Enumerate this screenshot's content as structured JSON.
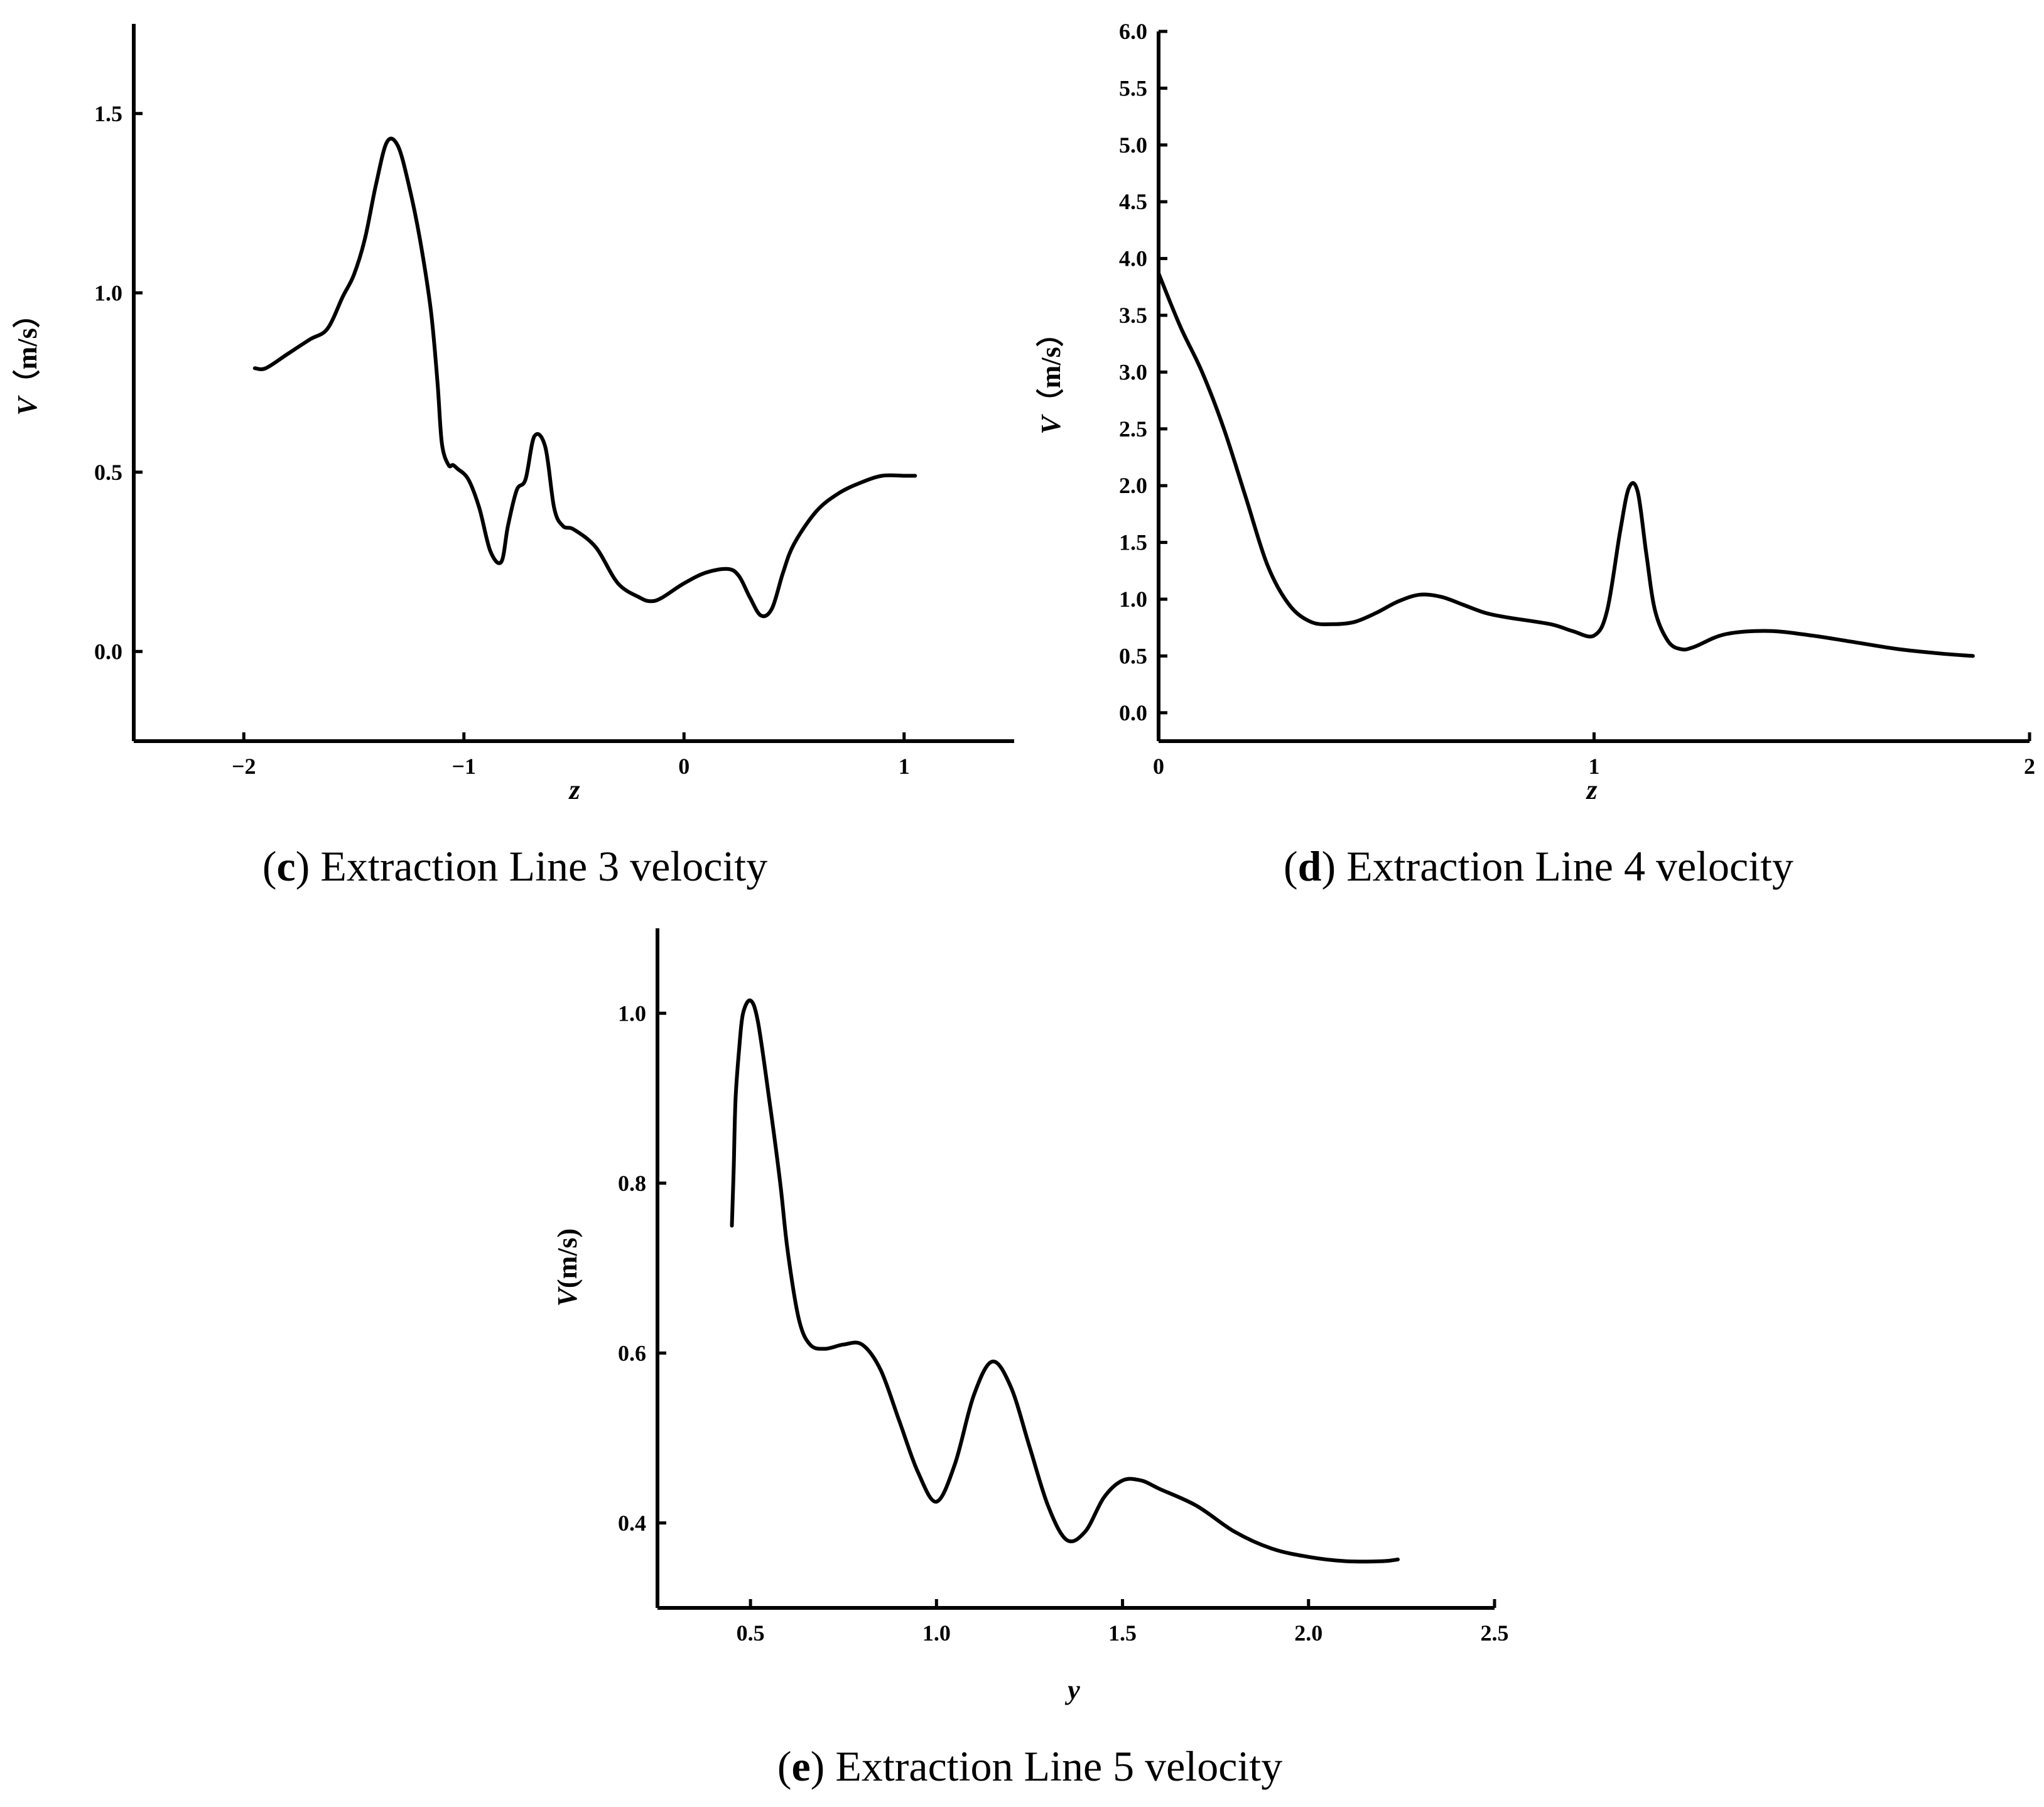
{
  "chart_data": [
    {
      "id": "c",
      "type": "line",
      "caption_letter": "c",
      "caption_text": " Extraction Line 3 velocity",
      "ylabel_var": "V",
      "ylabel_unit": "（m/s）",
      "xlabel": "z",
      "xlim": [
        -2.5,
        1.5
      ],
      "ylim": [
        -0.25,
        1.75
      ],
      "xticks": [
        {
          "v": -2,
          "label": "−2"
        },
        {
          "v": -1,
          "label": "−1"
        },
        {
          "v": 0,
          "label": "0"
        },
        {
          "v": 1,
          "label": "1"
        }
      ],
      "yticks": [
        {
          "v": 0.0,
          "label": "0.0"
        },
        {
          "v": 0.5,
          "label": "0.5"
        },
        {
          "v": 1.0,
          "label": "1.0"
        },
        {
          "v": 1.5,
          "label": "1.5"
        }
      ],
      "series": [
        {
          "name": "Extraction Line 3",
          "x": [
            -1.95,
            -1.9,
            -1.8,
            -1.7,
            -1.62,
            -1.55,
            -1.5,
            -1.45,
            -1.4,
            -1.35,
            -1.3,
            -1.25,
            -1.2,
            -1.15,
            -1.12,
            -1.1,
            -1.07,
            -1.05,
            -1.03,
            -0.98,
            -0.93,
            -0.88,
            -0.83,
            -0.8,
            -0.76,
            -0.72,
            -0.68,
            -0.63,
            -0.59,
            -0.55,
            -0.5,
            -0.4,
            -0.3,
            -0.2,
            -0.15,
            -0.1,
            0.0,
            0.1,
            0.2,
            0.25,
            0.3,
            0.35,
            0.4,
            0.45,
            0.5,
            0.6,
            0.7,
            0.8,
            0.9,
            1.0,
            1.05
          ],
          "y": [
            0.79,
            0.79,
            0.83,
            0.87,
            0.9,
            0.99,
            1.05,
            1.15,
            1.3,
            1.42,
            1.41,
            1.3,
            1.15,
            0.95,
            0.75,
            0.58,
            0.52,
            0.52,
            0.51,
            0.48,
            0.4,
            0.28,
            0.25,
            0.35,
            0.45,
            0.48,
            0.6,
            0.57,
            0.4,
            0.35,
            0.34,
            0.29,
            0.19,
            0.15,
            0.14,
            0.15,
            0.19,
            0.22,
            0.23,
            0.21,
            0.15,
            0.1,
            0.12,
            0.22,
            0.3,
            0.39,
            0.44,
            0.47,
            0.49,
            0.49,
            0.49
          ]
        }
      ]
    },
    {
      "id": "d",
      "type": "line",
      "caption_letter": "d",
      "caption_text": " Extraction Line 4 velocity",
      "ylabel_var": "V",
      "ylabel_unit": "（m/s）",
      "xlabel": "z",
      "xlim": [
        0,
        2
      ],
      "ylim": [
        -0.25,
        6.0
      ],
      "xticks": [
        {
          "v": 0,
          "label": "0"
        },
        {
          "v": 1,
          "label": "1"
        },
        {
          "v": 2,
          "label": "2"
        }
      ],
      "yticks": [
        {
          "v": 0.0,
          "label": "0.0"
        },
        {
          "v": 0.5,
          "label": "0.5"
        },
        {
          "v": 1.0,
          "label": "1.0"
        },
        {
          "v": 1.5,
          "label": "1.5"
        },
        {
          "v": 2.0,
          "label": "2.0"
        },
        {
          "v": 2.5,
          "label": "2.5"
        },
        {
          "v": 3.0,
          "label": "3.0"
        },
        {
          "v": 3.5,
          "label": "3.5"
        },
        {
          "v": 4.0,
          "label": "4.0"
        },
        {
          "v": 4.5,
          "label": "4.5"
        },
        {
          "v": 5.0,
          "label": "5.0"
        },
        {
          "v": 5.5,
          "label": "5.5"
        },
        {
          "v": 6.0,
          "label": "6.0"
        }
      ],
      "series": [
        {
          "name": "Extraction Line 4",
          "x": [
            0.0,
            0.05,
            0.1,
            0.15,
            0.2,
            0.25,
            0.3,
            0.35,
            0.4,
            0.45,
            0.5,
            0.55,
            0.6,
            0.65,
            0.7,
            0.75,
            0.8,
            0.9,
            0.95,
            1.0,
            1.03,
            1.06,
            1.08,
            1.1,
            1.12,
            1.14,
            1.17,
            1.2,
            1.23,
            1.3,
            1.4,
            1.5,
            1.6,
            1.7,
            1.8,
            1.87
          ],
          "y": [
            3.87,
            3.4,
            3.0,
            2.5,
            1.9,
            1.3,
            0.95,
            0.8,
            0.78,
            0.8,
            0.88,
            0.98,
            1.04,
            1.02,
            0.95,
            0.88,
            0.84,
            0.78,
            0.72,
            0.68,
            0.9,
            1.6,
            1.98,
            1.95,
            1.4,
            0.9,
            0.63,
            0.56,
            0.58,
            0.69,
            0.72,
            0.68,
            0.62,
            0.56,
            0.52,
            0.5
          ]
        }
      ]
    },
    {
      "id": "e",
      "type": "line",
      "caption_letter": "e",
      "caption_text": " Extraction Line 5 velocity",
      "ylabel_var": "V",
      "ylabel_unit": "(m/s)",
      "xlabel": "y",
      "xlim": [
        0.25,
        2.5
      ],
      "ylim": [
        0.3,
        1.1
      ],
      "xticks": [
        {
          "v": 0.5,
          "label": "0.5"
        },
        {
          "v": 1.0,
          "label": "1.0"
        },
        {
          "v": 1.5,
          "label": "1.5"
        },
        {
          "v": 2.0,
          "label": "2.0"
        },
        {
          "v": 2.5,
          "label": "2.5"
        }
      ],
      "yticks": [
        {
          "v": 0.4,
          "label": "0.4"
        },
        {
          "v": 0.6,
          "label": "0.6"
        },
        {
          "v": 0.8,
          "label": "0.8"
        },
        {
          "v": 1.0,
          "label": "1.0"
        }
      ],
      "series": [
        {
          "name": "Extraction Line 5",
          "x": [
            0.45,
            0.455,
            0.46,
            0.47,
            0.48,
            0.5,
            0.52,
            0.55,
            0.58,
            0.6,
            0.63,
            0.66,
            0.7,
            0.75,
            0.8,
            0.85,
            0.9,
            0.95,
            1.0,
            1.05,
            1.1,
            1.15,
            1.2,
            1.25,
            1.3,
            1.35,
            1.4,
            1.45,
            1.5,
            1.55,
            1.6,
            1.7,
            1.8,
            1.9,
            2.0,
            2.1,
            2.2,
            2.24
          ],
          "y": [
            0.75,
            0.82,
            0.9,
            0.96,
            1.0,
            1.015,
            0.99,
            0.9,
            0.8,
            0.72,
            0.64,
            0.61,
            0.605,
            0.61,
            0.61,
            0.58,
            0.52,
            0.46,
            0.425,
            0.47,
            0.55,
            0.59,
            0.56,
            0.49,
            0.42,
            0.38,
            0.39,
            0.43,
            0.45,
            0.45,
            0.44,
            0.42,
            0.39,
            0.37,
            0.36,
            0.355,
            0.355,
            0.357
          ]
        }
      ]
    }
  ]
}
